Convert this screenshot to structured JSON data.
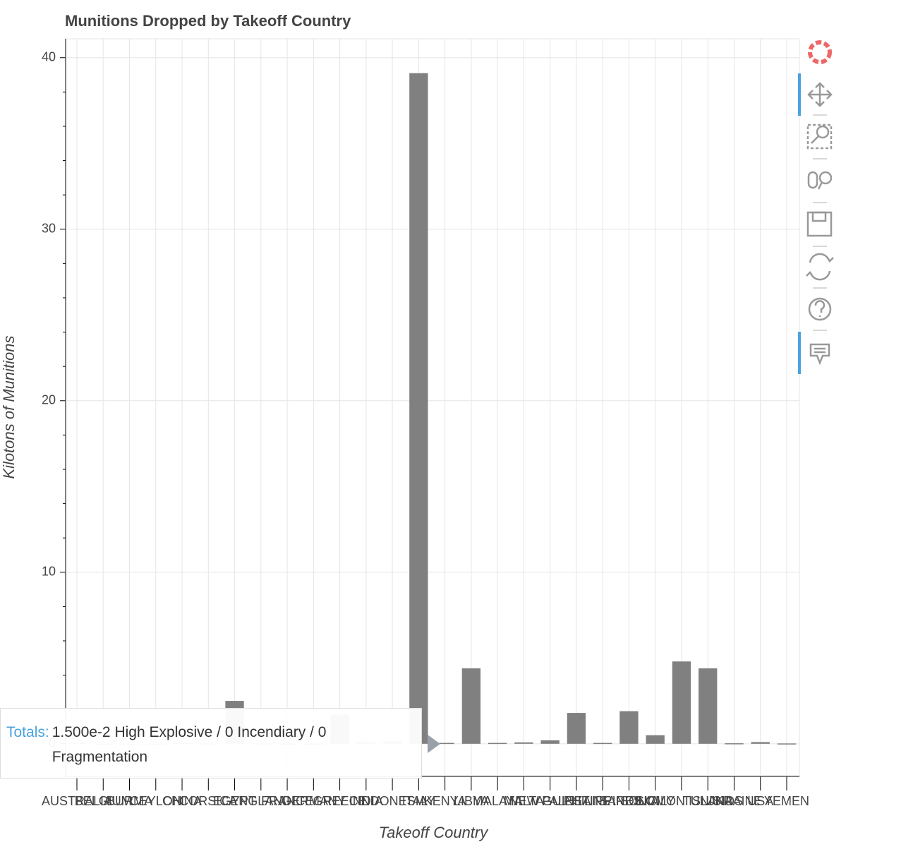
{
  "chart_data": {
    "type": "bar",
    "title": "Munitions Dropped by Takeoff Country",
    "x_label": "Takeoff Country",
    "y_label": "Kilotons of Munitions",
    "categories": [
      "AUSTRALIA",
      "BELGIUM",
      "BURMA",
      "CEYLON",
      "CHINA",
      "CORSICA",
      "EGYPT",
      "ENGLAND",
      "FRANCE",
      "GERMANY",
      "GREECE",
      "INDIA",
      "INDONESIA",
      "ITALY",
      "KENYA",
      "LIBYA",
      "MALAYA",
      "MALTA",
      "NEW GUINEA",
      "PALESTINE",
      "PHILIPPINES",
      "SARDINIA",
      "SICILY",
      "SOLOMON ISLANDS",
      "TUNISIA",
      "UKRAINE",
      "USA",
      "YEMEN"
    ],
    "values": [
      0.05,
      0,
      0,
      0,
      0.05,
      0.02,
      2.5,
      0.02,
      0.01,
      0.01,
      1.7,
      0.1,
      0.15,
      39.1,
      0.05,
      4.4,
      0.05,
      0.08,
      0.2,
      1.8,
      0.05,
      1.9,
      0.5,
      4.8,
      4.4,
      0.03,
      0.1,
      0.02
    ],
    "color": "#808080",
    "ylim": [
      -1.9,
      41.1
    ],
    "yticks": [
      0,
      10,
      20,
      30,
      40
    ],
    "grid": true,
    "tooltip": {
      "label": "Totals:",
      "text": "1.500e-2 High Explosive / 0 Incendiary / 0 Fragmentation"
    }
  }
}
